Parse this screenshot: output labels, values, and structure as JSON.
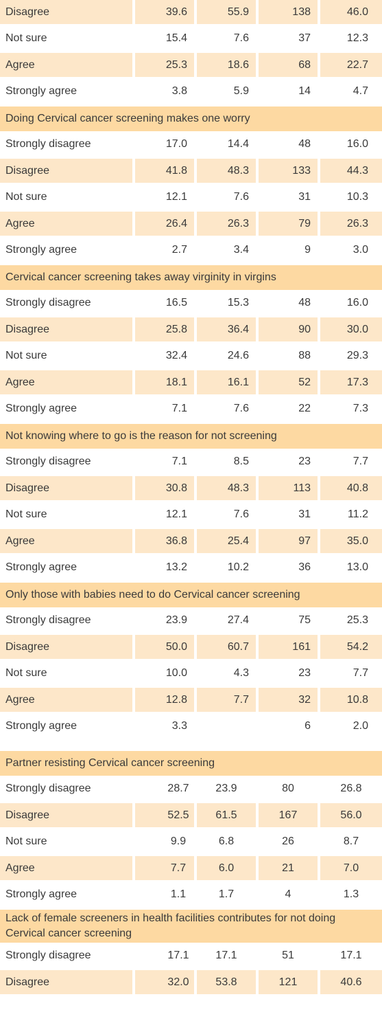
{
  "rows": [
    {
      "type": "data",
      "shaded": true,
      "label": "Disagree",
      "v": [
        "39.6",
        "55.9",
        "138",
        "46.0"
      ]
    },
    {
      "type": "data",
      "shaded": false,
      "label": "Not sure",
      "v": [
        "15.4",
        "7.6",
        "37",
        "12.3"
      ]
    },
    {
      "type": "data",
      "shaded": true,
      "label": "Agree",
      "v": [
        "25.3",
        "18.6",
        "68",
        "22.7"
      ]
    },
    {
      "type": "data",
      "shaded": false,
      "label": "Strongly agree",
      "v": [
        "3.8",
        "5.9",
        "14",
        "4.7"
      ]
    },
    {
      "type": "header",
      "label": "Doing Cervical cancer screening makes one worry"
    },
    {
      "type": "data",
      "shaded": false,
      "label": "Strongly disagree",
      "v": [
        "17.0",
        "14.4",
        "48",
        "16.0"
      ]
    },
    {
      "type": "data",
      "shaded": true,
      "label": "Disagree",
      "v": [
        "41.8",
        "48.3",
        "133",
        "44.3"
      ]
    },
    {
      "type": "data",
      "shaded": false,
      "label": "Not sure",
      "v": [
        "12.1",
        "7.6",
        "31",
        "10.3"
      ]
    },
    {
      "type": "data",
      "shaded": true,
      "label": "Agree",
      "v": [
        "26.4",
        "26.3",
        "79",
        "26.3"
      ]
    },
    {
      "type": "data",
      "shaded": false,
      "label": "Strongly agree",
      "v": [
        "2.7",
        "3.4",
        "9",
        "3.0"
      ]
    },
    {
      "type": "header",
      "label": "Cervical cancer screening takes away virginity in virgins"
    },
    {
      "type": "data",
      "shaded": false,
      "label": "Strongly disagree",
      "v": [
        "16.5",
        "15.3",
        "48",
        "16.0"
      ]
    },
    {
      "type": "data",
      "shaded": true,
      "label": "Disagree",
      "v": [
        "25.8",
        "36.4",
        "90",
        "30.0"
      ]
    },
    {
      "type": "data",
      "shaded": false,
      "label": "Not sure",
      "v": [
        "32.4",
        "24.6",
        "88",
        "29.3"
      ]
    },
    {
      "type": "data",
      "shaded": true,
      "label": "Agree",
      "v": [
        "18.1",
        "16.1",
        "52",
        "17.3"
      ]
    },
    {
      "type": "data",
      "shaded": false,
      "label": "Strongly agree",
      "v": [
        "7.1",
        "7.6",
        "22",
        "7.3"
      ]
    },
    {
      "type": "header",
      "label": "Not knowing where to go is the reason for not screening"
    },
    {
      "type": "data",
      "shaded": false,
      "label": "Strongly disagree",
      "v": [
        "7.1",
        "8.5",
        "23",
        "7.7"
      ]
    },
    {
      "type": "data",
      "shaded": true,
      "label": "Disagree",
      "v": [
        "30.8",
        "48.3",
        "113",
        "40.8"
      ]
    },
    {
      "type": "data",
      "shaded": false,
      "label": "Not sure",
      "v": [
        "12.1",
        "7.6",
        "31",
        "11.2"
      ]
    },
    {
      "type": "data",
      "shaded": true,
      "label": "Agree",
      "v": [
        "36.8",
        "25.4",
        "97",
        "35.0"
      ]
    },
    {
      "type": "data",
      "shaded": false,
      "label": "Strongly agree",
      "v": [
        "13.2",
        "10.2",
        "36",
        "13.0"
      ]
    },
    {
      "type": "header",
      "label": "Only those with babies need to do Cervical cancer screening"
    },
    {
      "type": "data",
      "shaded": false,
      "label": "Strongly disagree",
      "v": [
        "23.9",
        "27.4",
        "75",
        "25.3"
      ]
    },
    {
      "type": "data",
      "shaded": true,
      "label": "Disagree",
      "v": [
        "50.0",
        "60.7",
        "161",
        "54.2"
      ]
    },
    {
      "type": "data",
      "shaded": false,
      "label": "Not sure",
      "v": [
        "10.0",
        "4.3",
        "23",
        "7.7"
      ]
    },
    {
      "type": "data",
      "shaded": true,
      "label": "Agree",
      "v": [
        "12.8",
        "7.7",
        "32",
        "10.8"
      ]
    },
    {
      "type": "data",
      "shaded": false,
      "label": "Strongly agree",
      "v": [
        "3.3",
        "",
        "6",
        "2.0"
      ]
    },
    {
      "type": "pad"
    },
    {
      "type": "header",
      "label": "Partner resisting Cervical cancer screening"
    },
    {
      "type": "data",
      "shaded": false,
      "g6": true,
      "label": "Strongly disagree",
      "v": [
        "28.7",
        "23.9",
        "80",
        "26.8"
      ]
    },
    {
      "type": "data",
      "shaded": true,
      "g6": true,
      "label": "Disagree",
      "v": [
        "52.5",
        "61.5",
        "167",
        "56.0"
      ]
    },
    {
      "type": "data",
      "shaded": false,
      "g6": true,
      "label": "Not sure",
      "v": [
        "9.9",
        "6.8",
        "26",
        "8.7"
      ]
    },
    {
      "type": "data",
      "shaded": true,
      "g6": true,
      "label": "Agree",
      "v": [
        "7.7",
        "6.0",
        "21",
        "7.0"
      ]
    },
    {
      "type": "data",
      "shaded": false,
      "g6": true,
      "label": "Strongly agree",
      "v": [
        "1.1",
        "1.7",
        "4",
        "1.3"
      ]
    },
    {
      "type": "header",
      "tall": true,
      "label": "Lack of female screeners in health facilities contributes for not doing Cervical cancer screening"
    },
    {
      "type": "data",
      "shaded": false,
      "g6": true,
      "label": "Strongly disagree",
      "v": [
        "17.1",
        "17.1",
        "51",
        "17.1"
      ]
    },
    {
      "type": "data",
      "shaded": true,
      "g6": true,
      "label": "Disagree",
      "v": [
        "32.0",
        "53.8",
        "121",
        "40.6"
      ]
    }
  ]
}
